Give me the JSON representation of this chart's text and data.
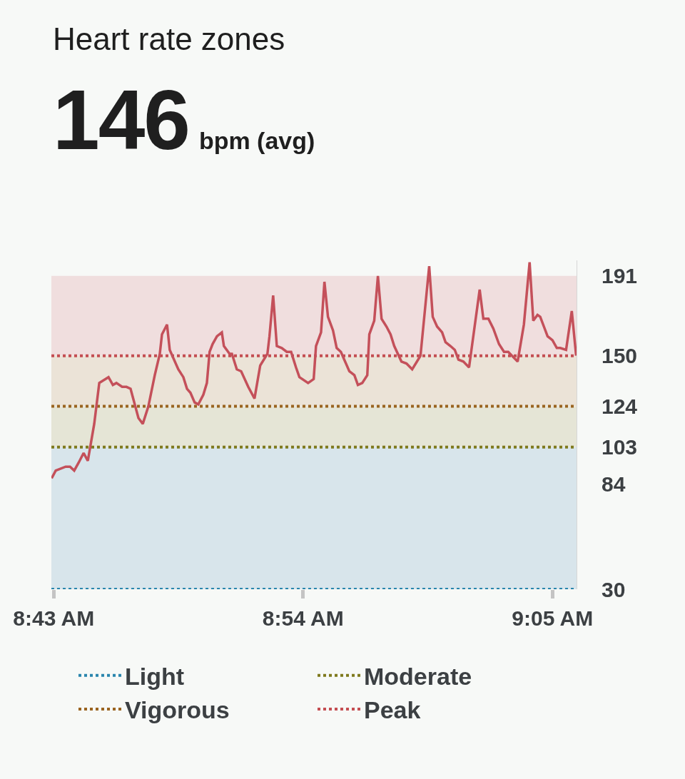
{
  "chart_data": {
    "type": "line",
    "title": "Heart rate zones",
    "subtitle": "146",
    "annotations": [
      "bpm (avg)"
    ],
    "series": [
      {
        "color": "#c4505a",
        "x": [
          8.7152,
          8.7182,
          8.7255,
          8.7287,
          8.7318,
          8.735,
          8.7387,
          8.7418,
          8.7465,
          8.7502,
          8.757,
          8.7602,
          8.7628,
          8.767,
          8.7702,
          8.7732,
          8.779,
          8.7822,
          8.7863,
          8.791,
          8.7947,
          8.7963,
          8.8,
          8.802,
          8.8083,
          8.812,
          8.8147,
          8.8172,
          8.8203,
          8.823,
          8.8267,
          8.8293,
          8.8313,
          8.8335,
          8.8367,
          8.8403,
          8.8418,
          8.846,
          8.8477,
          8.8513,
          8.8545,
          8.8597,
          8.8643,
          8.8685,
          8.8738,
          8.8753,
          8.878,
          8.8807,
          8.8843,
          8.888,
          8.8912,
          8.8948,
          8.8973,
          8.9037,
          8.9078,
          8.9095,
          8.9132,
          8.9157,
          8.9183,
          8.922,
          8.9247,
          8.9278,
          8.934,
          8.9377,
          8.9403,
          8.9435,
          8.9472,
          8.9487,
          8.9523,
          8.955,
          8.9577,
          8.9613,
          8.9643,
          8.967,
          8.9723,
          8.976,
          8.9802,
          8.9863,
          8.9927,
          8.9953,
          8.9985,
          9.0022,
          9.0047,
          9.0083,
          9.0115,
          9.0142,
          9.0178,
          9.022,
          9.0257,
          9.0298,
          9.0325,
          9.0362,
          9.0398,
          9.044,
          9.0477,
          9.0508,
          9.0577,
          9.0623,
          9.0665,
          9.0692,
          9.0723,
          9.0743,
          9.0797,
          9.0833,
          9.0865,
          9.089,
          9.0933,
          9.0975,
          9.1007
        ],
        "values": [
          87,
          91,
          93,
          93,
          91,
          95,
          100,
          96,
          115,
          136,
          139,
          135,
          136,
          134,
          134,
          133,
          118,
          115,
          124,
          140,
          151,
          161,
          166,
          153,
          143,
          139,
          133,
          131,
          126,
          125,
          130,
          136,
          152,
          156,
          160,
          162,
          155,
          151,
          151,
          143,
          142,
          134,
          128,
          145,
          151,
          160,
          181,
          155,
          154,
          152,
          152,
          144,
          139,
          136,
          138,
          155,
          162,
          188,
          170,
          163,
          154,
          152,
          142,
          140,
          135,
          136,
          140,
          161,
          168,
          191,
          169,
          165,
          161,
          155,
          147,
          146,
          143,
          150,
          196,
          170,
          165,
          162,
          157,
          155,
          153,
          148,
          147,
          144,
          163,
          184,
          169,
          169,
          164,
          156,
          152,
          152,
          147,
          166,
          198,
          168,
          171,
          170,
          160,
          158,
          154,
          154,
          153,
          173,
          150
        ]
      }
    ],
    "xlim": [
      8.715,
      9.101
    ],
    "xticks": [
      {
        "value": 8.7167,
        "label": "8:43 AM"
      },
      {
        "value": 8.9,
        "label": "8:54 AM"
      },
      {
        "value": 9.0833,
        "label": "9:05 AM"
      }
    ],
    "ylim": [
      30,
      199
    ],
    "yticks": [
      30,
      84,
      103,
      124,
      150,
      191
    ],
    "bands": [
      {
        "axis": "y",
        "from": 30,
        "to": 103,
        "color": "#d8e5eb"
      },
      {
        "axis": "y",
        "from": 103,
        "to": 124,
        "color": "#e5e5d6"
      },
      {
        "axis": "y",
        "from": 124,
        "to": 150,
        "color": "#ebe3d7"
      },
      {
        "axis": "y",
        "from": 150,
        "to": 191,
        "color": "#f0dede"
      }
    ],
    "ref_lines": [
      {
        "axis": "y",
        "value": 30,
        "label": "Light",
        "color": "#2a86ad",
        "line_style": "dotted"
      },
      {
        "axis": "y",
        "value": 103,
        "label": "Moderate",
        "color": "#7f7a1e",
        "line_style": "dotted"
      },
      {
        "axis": "y",
        "value": 124,
        "label": "Vigorous",
        "color": "#9a6420",
        "line_style": "dotted"
      },
      {
        "axis": "y",
        "value": 150,
        "label": "Peak",
        "color": "#c44e52",
        "line_style": "dotted"
      }
    ],
    "legend": "bottom"
  }
}
